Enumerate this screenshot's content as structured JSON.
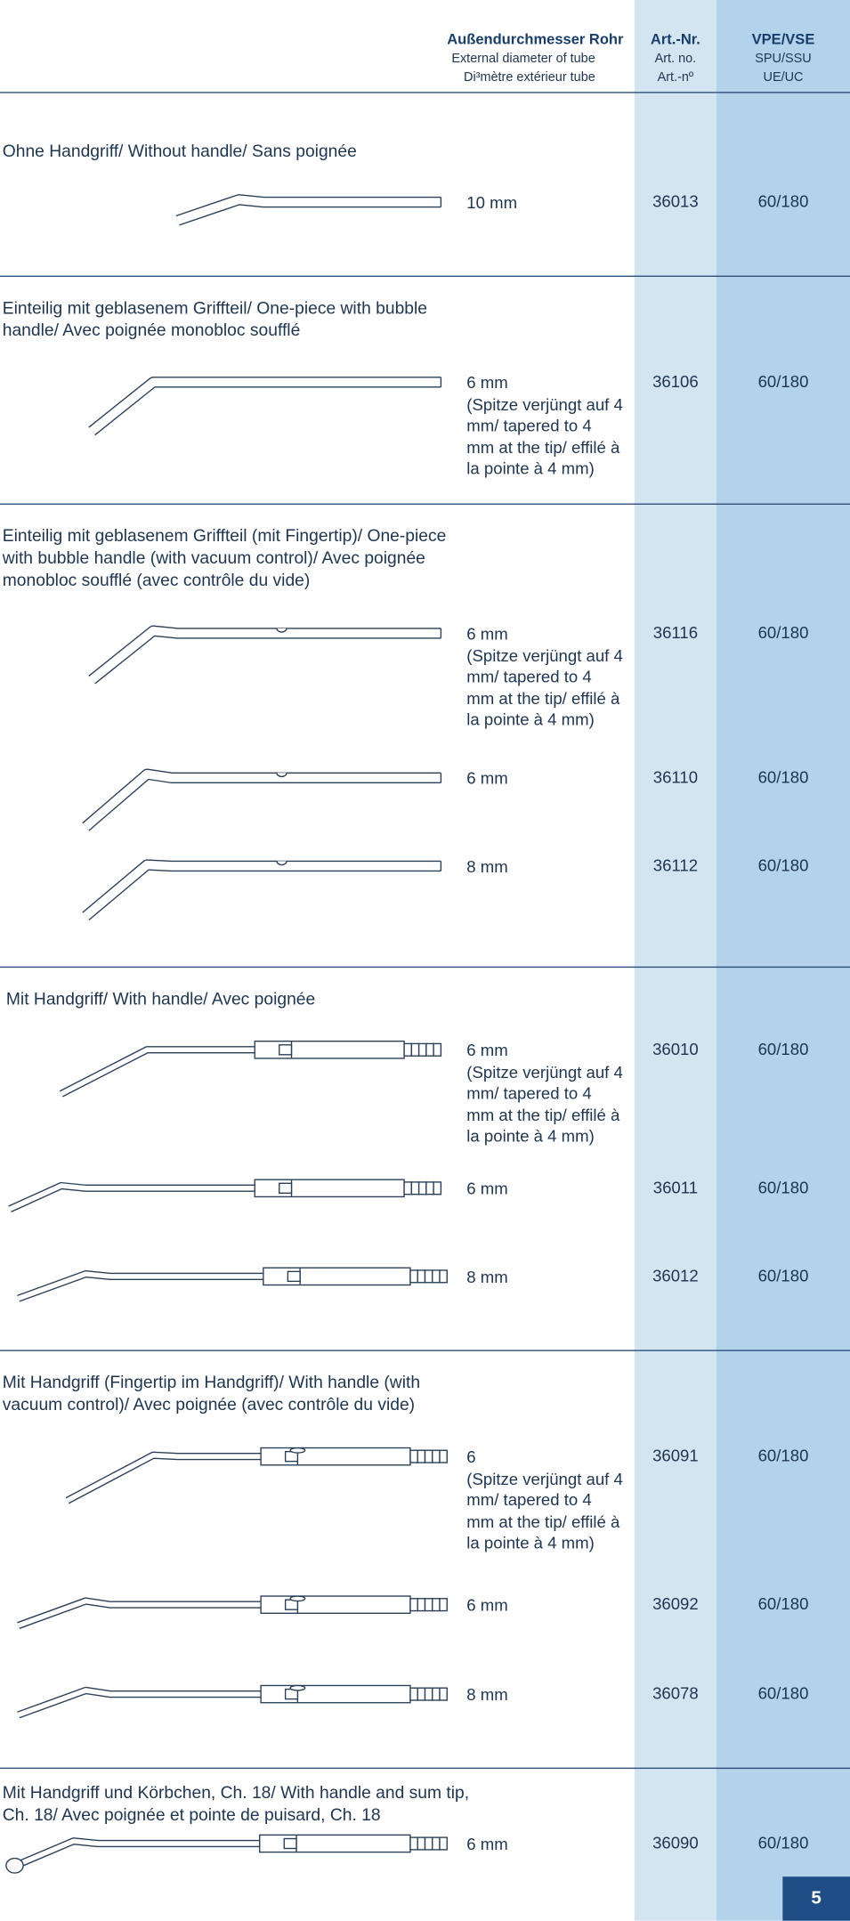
{
  "header": {
    "diameter": [
      "Außendurchmesser Rohr",
      "External diameter of tube",
      "Di³mètre extérieur tube"
    ],
    "art_nr": [
      "Art.-Nr.",
      "Art. no.",
      "Art.-nº"
    ],
    "vpe": [
      "VPE/VSE",
      "SPU/SSU",
      "UE/UC"
    ]
  },
  "sections": [
    {
      "title": "Ohne Handgriff/ Without handle/ Sans poignée",
      "items": [
        {
          "diameter": "10 mm",
          "art_nr": "36013",
          "vpe": "60/180"
        }
      ]
    },
    {
      "title": "Einteilig mit geblasenem Griffteil/ One-piece with bubble handle/ Avec poignée monobloc soufflé",
      "items": [
        {
          "diameter": "6 mm",
          "note": "(Spitze verjüngt auf 4 mm/ tapered to 4 mm at the tip/ effilé à la pointe à 4 mm)",
          "art_nr": "36106",
          "vpe": "60/180"
        }
      ]
    },
    {
      "title": "Einteilig mit geblasenem Griffteil (mit Fingertip)/ One-piece with bubble handle (with vacuum control)/ Avec poignée monobloc soufflé (avec contrôle du vide)",
      "items": [
        {
          "diameter": "6 mm",
          "note": "(Spitze verjüngt auf 4 mm/ tapered to 4 mm at the tip/ effilé à la pointe à 4 mm)",
          "art_nr": "36116",
          "vpe": "60/180"
        },
        {
          "diameter": "6 mm",
          "art_nr": "36110",
          "vpe": "60/180"
        },
        {
          "diameter": "8 mm",
          "art_nr": "36112",
          "vpe": "60/180"
        }
      ]
    },
    {
      "title": "Mit Handgriff/ With handle/ Avec poignée",
      "items": [
        {
          "diameter": "6 mm",
          "note": "(Spitze verjüngt auf 4 mm/ tapered to 4 mm at the tip/ effilé à la pointe à 4 mm)",
          "art_nr": "36010",
          "vpe": "60/180"
        },
        {
          "diameter": "6 mm",
          "art_nr": "36011",
          "vpe": "60/180"
        },
        {
          "diameter": "8 mm",
          "art_nr": "36012",
          "vpe": "60/180"
        }
      ]
    },
    {
      "title": "Mit Handgriff (Fingertip im Handgriff)/ With handle (with vacuum control)/ Avec poignée (avec contrôle du vide)",
      "items": [
        {
          "diameter": "6",
          "note": "(Spitze verjüngt auf 4 mm/ tapered to 4 mm at the tip/ effilé à la pointe à 4 mm)",
          "art_nr": "36091",
          "vpe": "60/180"
        },
        {
          "diameter": "6 mm",
          "art_nr": "36092",
          "vpe": "60/180"
        },
        {
          "diameter": "8 mm",
          "art_nr": "36078",
          "vpe": "60/180"
        }
      ]
    },
    {
      "title": "Mit Handgriff und Körbchen, Ch. 18/ With handle and sum tip, Ch. 18/ Avec poignée et pointe de puisard, Ch. 18",
      "items": [
        {
          "diameter": "6 mm",
          "art_nr": "36090",
          "vpe": "60/180"
        }
      ]
    }
  ],
  "page_number": "5"
}
